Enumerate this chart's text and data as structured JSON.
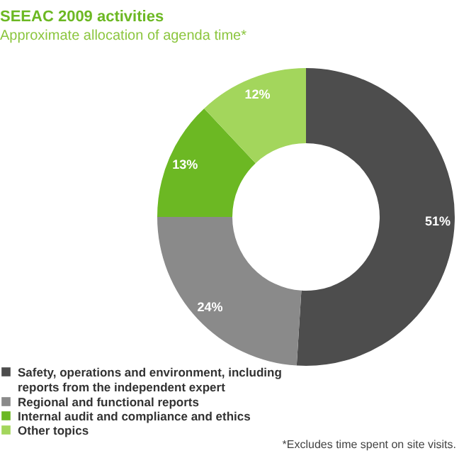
{
  "chart_data": {
    "type": "donut",
    "title": "SEEAC 2009 activities",
    "subtitle": "Approximate allocation of agenda time*",
    "categories": [
      "Safety, operations and environment, including reports from the independent expert",
      "Regional and functional reports",
      "Internal audit and compliance and ethics",
      "Other topics"
    ],
    "values": [
      51,
      24,
      13,
      12
    ],
    "colors": [
      "#4d4d4d",
      "#8a8a8a",
      "#6cb823",
      "#a3d65c"
    ],
    "value_labels": [
      "51%",
      "24%",
      "13%",
      "12%"
    ],
    "legend": "bottom left",
    "annotations": [
      "*Excludes time spent on site visits."
    ]
  }
}
